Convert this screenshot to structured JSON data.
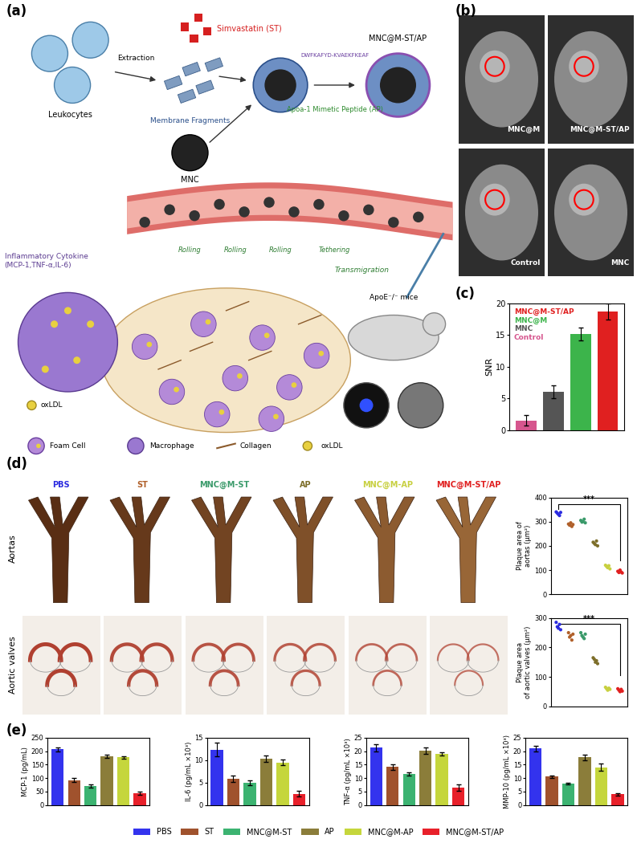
{
  "panel_labels": [
    "(a)",
    "(b)",
    "(c)",
    "(d)",
    "(e)"
  ],
  "diagram": {
    "leukocytes": "Leukocytes",
    "extraction": "Extraction",
    "drug": "Simvastatin (ST)",
    "fragments": "Membrane Fragments",
    "core": "MNC",
    "peptide_sequence": "DWFKAFYD-KVAEKFKEAF",
    "peptide": "Apoa-1 Mimetic Peptide (AP)",
    "product": "MNC@M-ST/AP",
    "cytokine": "Inflammatory Cytokine\n(MCP-1,TNF-α,IL-6)",
    "steps": [
      "Rolling",
      "Rolling",
      "Rolling",
      "Tethering"
    ],
    "transmigration": "Transmigration",
    "mouse": "ApoE⁻/⁻ mice",
    "oxldl": "oxLDL",
    "key": [
      "Foam Cell",
      "Macrophage",
      "Collagen",
      "oxLDL"
    ]
  },
  "mri_images": {
    "labels": [
      "MNC@M",
      "MNC@M-ST/AP",
      "Control",
      "MNC"
    ]
  },
  "staining_images": {
    "rows": [
      "Aortas",
      "Aortic valves"
    ],
    "columns": [
      "PBS",
      "ST",
      "MNC@M-ST",
      "AP",
      "MNC@M-AP",
      "MNC@M-ST/AP"
    ],
    "column_colors": [
      "#2b2be0",
      "#b0602a",
      "#3a9a6a",
      "#7d6e2a",
      "#c8d040",
      "#e02020"
    ]
  },
  "chart_data": [
    {
      "type": "bar",
      "ylabel": "SNR",
      "categories": [
        "Control",
        "MNC",
        "MNC@M",
        "MNC@M-ST/AP"
      ],
      "values": [
        1.5,
        6.0,
        15.2,
        18.7
      ],
      "errors": [
        0.8,
        1.0,
        1.0,
        1.3
      ],
      "colors": [
        "#d6568e",
        "#555555",
        "#3cb44b",
        "#e02020"
      ],
      "ylim": [
        0,
        20
      ],
      "yticks": [
        0,
        5,
        10,
        15,
        20
      ],
      "tick_labels": "y",
      "legend": "upper left"
    },
    {
      "type": "scatter",
      "ylabel": "Plaque area of\naortas (μm²)",
      "categories": [
        "PBS",
        "ST",
        "MNC@M-ST",
        "AP",
        "MNC@M-AP",
        "MNC@M-ST/AP"
      ],
      "values": [
        [
          340,
          335,
          330,
          325,
          338
        ],
        [
          290,
          285,
          295,
          280,
          288
        ],
        [
          305,
          298,
          300,
          310,
          295
        ],
        [
          215,
          210,
          205,
          220,
          200
        ],
        [
          120,
          115,
          110,
          118,
          105
        ],
        [
          95,
          90,
          100,
          92,
          88
        ]
      ],
      "colors": [
        "#2b2be0",
        "#b0602a",
        "#3a9a6a",
        "#7d6e2a",
        "#c8d040",
        "#e02020"
      ],
      "ylim": [
        0,
        400
      ],
      "yticks": [
        0,
        100,
        200,
        300,
        400
      ],
      "tick_labels": "y",
      "annotations": [
        "***"
      ]
    },
    {
      "type": "scatter",
      "ylabel": "Plaque area\nof aortic valves (μm²)",
      "categories": [
        "PBS",
        "ST",
        "MNC@M-ST",
        "AP",
        "MNC@M-AP",
        "MNC@M-ST/AP"
      ],
      "values": [
        [
          285,
          270,
          265,
          278,
          260
        ],
        [
          250,
          235,
          240,
          225,
          245
        ],
        [
          250,
          240,
          235,
          230,
          245
        ],
        [
          165,
          160,
          150,
          155,
          145
        ],
        [
          65,
          60,
          55,
          62,
          58
        ],
        [
          60,
          55,
          50,
          58,
          52
        ]
      ],
      "colors": [
        "#2b2be0",
        "#b0602a",
        "#3a9a6a",
        "#7d6e2a",
        "#c8d040",
        "#e02020"
      ],
      "ylim": [
        0,
        300
      ],
      "yticks": [
        0,
        100,
        200,
        300
      ],
      "tick_labels": "y",
      "annotations": [
        "***"
      ]
    },
    {
      "type": "bar",
      "ylabel": "MCP-1 (pg/mL)",
      "categories": [
        "PBS",
        "ST",
        "MNC@M-ST",
        "AP",
        "MNC@M-AP",
        "MNC@M-ST/AP"
      ],
      "values": [
        207,
        93,
        72,
        182,
        177,
        44
      ],
      "errors": [
        8,
        7,
        6,
        6,
        5,
        5
      ],
      "colors": [
        "#3333ee",
        "#a0522d",
        "#3cb371",
        "#8b7d3a",
        "#c5d63c",
        "#e8202a"
      ],
      "ylim": [
        0,
        250
      ],
      "yticks": [
        0,
        50,
        100,
        150,
        200,
        250
      ],
      "tick_labels": "y",
      "legend": "lower center"
    },
    {
      "type": "bar",
      "ylabel": "IL-6 (pg/mL ×10³)",
      "categories": [
        "PBS",
        "ST",
        "MNC@M-ST",
        "AP",
        "MNC@M-AP",
        "MNC@M-ST/AP"
      ],
      "values": [
        12.3,
        5.9,
        5.0,
        10.3,
        9.5,
        2.5
      ],
      "errors": [
        1.5,
        0.7,
        0.5,
        0.7,
        0.7,
        0.6
      ],
      "colors": [
        "#3333ee",
        "#a0522d",
        "#3cb371",
        "#8b7d3a",
        "#c5d63c",
        "#e8202a"
      ],
      "ylim": [
        0,
        15
      ],
      "yticks": [
        0,
        5,
        10,
        15
      ],
      "tick_labels": "y"
    },
    {
      "type": "bar",
      "ylabel": "TNF-α (pg/mL ×10³)",
      "categories": [
        "PBS",
        "ST",
        "MNC@M-ST",
        "AP",
        "MNC@M-AP",
        "MNC@M-ST/AP"
      ],
      "values": [
        21.3,
        14.1,
        11.4,
        20.3,
        19.0,
        6.6
      ],
      "errors": [
        1.3,
        1.0,
        0.6,
        1.2,
        0.7,
        1.2
      ],
      "colors": [
        "#3333ee",
        "#a0522d",
        "#3cb371",
        "#8b7d3a",
        "#c5d63c",
        "#e8202a"
      ],
      "ylim": [
        0,
        25
      ],
      "yticks": [
        0,
        5,
        10,
        15,
        20,
        25
      ],
      "tick_labels": "y"
    },
    {
      "type": "bar",
      "ylabel": "MMP-10 (pg/mL ×10³)",
      "categories": [
        "PBS",
        "ST",
        "MNC@M-ST",
        "AP",
        "MNC@M-AP",
        "MNC@M-ST/AP"
      ],
      "values": [
        21.0,
        10.5,
        8.0,
        17.7,
        14.0,
        4.0
      ],
      "errors": [
        1.0,
        0.4,
        0.2,
        1.0,
        1.3,
        0.4
      ],
      "colors": [
        "#3333ee",
        "#a0522d",
        "#3cb371",
        "#8b7d3a",
        "#c5d63c",
        "#e8202a"
      ],
      "ylim": [
        0,
        25
      ],
      "yticks": [
        0,
        5,
        10,
        15,
        20,
        25
      ],
      "tick_labels": "y"
    }
  ]
}
